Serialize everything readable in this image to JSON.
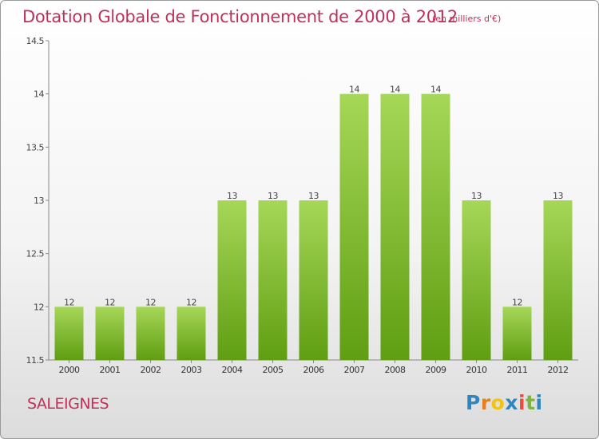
{
  "header": {
    "title": "Dotation Globale de Fonctionnement de 2000 à 2012",
    "subtitle": "(en milliers d'€)"
  },
  "footer": {
    "commune": "SALEIGNES",
    "logo_text": "Proxiti",
    "logo_letters": [
      {
        "ch": "P",
        "color": "#2e86c1"
      },
      {
        "ch": "r",
        "color": "#e67e22"
      },
      {
        "ch": "o",
        "color": "#f1c40f"
      },
      {
        "ch": "x",
        "color": "#2e86c1"
      },
      {
        "ch": "i",
        "color": "#e74c3c"
      },
      {
        "ch": "t",
        "color": "#7cb342"
      },
      {
        "ch": "i",
        "color": "#2e86c1"
      }
    ]
  },
  "chart_data": {
    "type": "bar",
    "title": "Dotation Globale de Fonctionnement de 2000 à 2012",
    "subtitle": "(en milliers d'€)",
    "categories": [
      "2000",
      "2001",
      "2002",
      "2003",
      "2004",
      "2005",
      "2006",
      "2007",
      "2008",
      "2009",
      "2010",
      "2011",
      "2012"
    ],
    "values": [
      12,
      12,
      12,
      12,
      13,
      13,
      13,
      14,
      14,
      14,
      13,
      12,
      13
    ],
    "ylim": [
      11.5,
      14.5
    ],
    "yticks": [
      "11.5",
      "12",
      "12.5",
      "13",
      "13.5",
      "14",
      "14.5"
    ],
    "grid": false,
    "legend": "none",
    "bar_color_top": "#a6d758",
    "bar_color_bottom": "#5f9e12",
    "text_color": "#c0305a"
  }
}
